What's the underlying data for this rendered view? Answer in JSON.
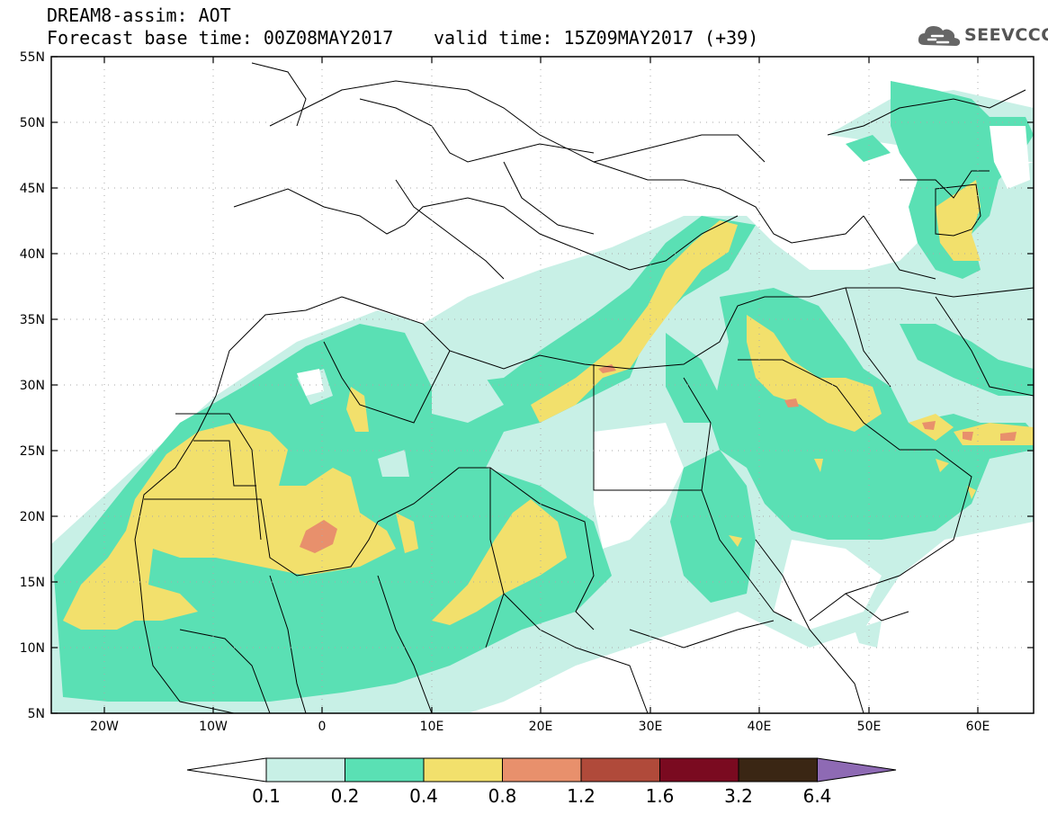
{
  "title": {
    "line1": "DREAM8-assim: AOT",
    "line2": "Forecast base time: 00Z08MAY2017",
    "line3": "valid time: 15Z09MAY2017 (+39)"
  },
  "logo": {
    "text": "SEEVCCC",
    "icon": "cloud-icon"
  },
  "axes": {
    "lat_labels": [
      "55N",
      "50N",
      "45N",
      "40N",
      "35N",
      "30N",
      "25N",
      "20N",
      "15N",
      "10N",
      "5N"
    ],
    "lon_labels": [
      "20W",
      "10W",
      "0",
      "10E",
      "20E",
      "30E",
      "40E",
      "50E",
      "60E"
    ]
  },
  "colorbar": {
    "labels": [
      "0.1",
      "0.2",
      "0.4",
      "0.8",
      "1.2",
      "1.6",
      "3.2",
      "6.4"
    ],
    "colors": [
      "#c8f0e6",
      "#5ae0b4",
      "#f2e06c",
      "#e8906c",
      "#b04a3a",
      "#7a0a20",
      "#3a2614",
      "#8e6ab4"
    ]
  },
  "colors": {
    "c1": "#c8f0e6",
    "c2": "#5ae0b4",
    "c3": "#f2e06c",
    "c4": "#e8906c"
  }
}
